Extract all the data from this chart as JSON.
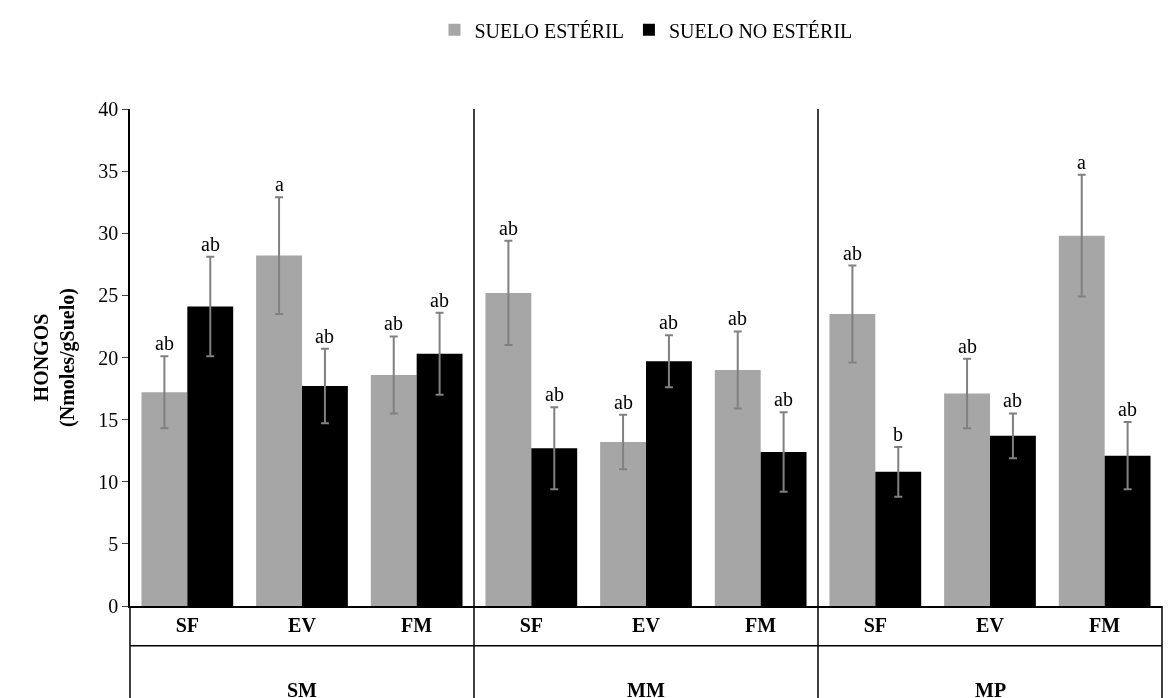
{
  "chart_data": {
    "type": "bar",
    "ylabel": "HONGOS\n(Nmoles/gSuelo)",
    "categories": [
      "SF",
      "EV",
      "FM",
      "SF",
      "EV",
      "FM",
      "SF",
      "EV",
      "FM"
    ],
    "annotations": [
      "SM",
      "MM",
      "MP"
    ],
    "series": [
      {
        "name": "SUELO ESTÉRIL",
        "color": "#a6a6a6",
        "values": [
          17.2,
          28.2,
          18.6,
          25.2,
          13.2,
          19.0,
          23.5,
          17.1,
          29.8
        ],
        "errors": [
          2.9,
          4.7,
          3.1,
          4.2,
          2.2,
          3.1,
          3.9,
          2.8,
          4.9
        ],
        "value_labels": [
          "ab",
          "a",
          "ab",
          "ab",
          "ab",
          "ab",
          "ab",
          "ab",
          "a"
        ]
      },
      {
        "name": "SUELO NO ESTÉRIL",
        "color": "#000000",
        "values": [
          24.1,
          17.7,
          20.3,
          12.7,
          19.7,
          12.4,
          10.8,
          13.7,
          12.1
        ],
        "errors": [
          4.0,
          3.0,
          3.3,
          3.3,
          2.1,
          3.2,
          2.0,
          1.8,
          2.7
        ],
        "value_labels": [
          "ab",
          "ab",
          "ab",
          "ab",
          "ab",
          "ab",
          "b",
          "ab",
          "ab"
        ]
      }
    ],
    "ylim": [
      0,
      40
    ],
    "yticks": [
      0,
      5,
      10,
      15,
      20,
      25,
      30,
      35,
      40
    ],
    "grid": false,
    "legend": "top"
  }
}
